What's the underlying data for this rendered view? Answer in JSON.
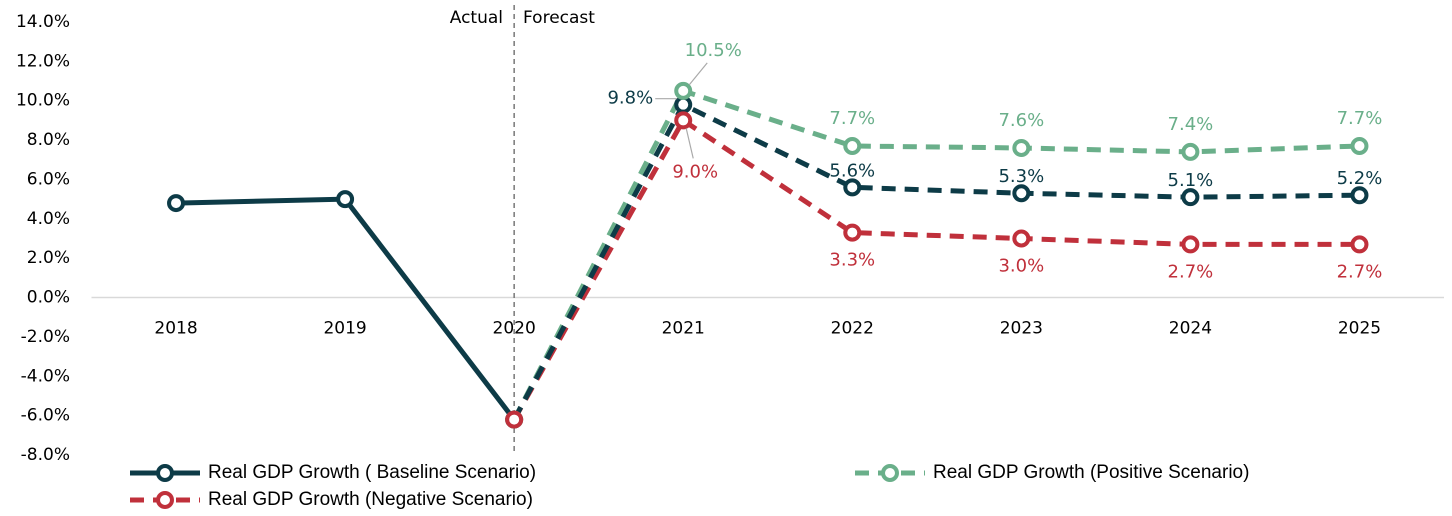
{
  "chart_data": {
    "type": "line",
    "categories": [
      "2018",
      "2019",
      "2020",
      "2021",
      "2022",
      "2023",
      "2024",
      "2025"
    ],
    "ylim": [
      -8,
      14
    ],
    "yticks": [
      {
        "value": 14,
        "label": "14.0%"
      },
      {
        "value": 12,
        "label": "12.0%"
      },
      {
        "value": 10,
        "label": "10.0%"
      },
      {
        "value": 8,
        "label": "8.0%"
      },
      {
        "value": 6,
        "label": "6.0%"
      },
      {
        "value": 4,
        "label": "4.0%"
      },
      {
        "value": 2,
        "label": "2.0%"
      },
      {
        "value": 0,
        "label": "0.0%"
      },
      {
        "value": -2,
        "label": "-2.0%"
      },
      {
        "value": -4,
        "label": "-4.0%"
      },
      {
        "value": -6,
        "label": "-6.0%"
      },
      {
        "value": -8,
        "label": "-8.0%"
      }
    ],
    "divider": {
      "index": 2,
      "left_label": "Actual",
      "right_label": "Forecast"
    },
    "legend": "bottom",
    "series": [
      {
        "name": "Real GDP Growth ( Baseline Scenario)",
        "color": "#0d3b47",
        "values": [
          4.8,
          5.0,
          -6.2,
          9.8,
          5.6,
          5.3,
          5.1,
          5.2
        ],
        "value_labels": [
          null,
          null,
          null,
          "9.8%",
          "5.6%",
          "5.3%",
          "5.1%",
          "5.2%"
        ]
      },
      {
        "name": "Real GDP Growth (Positive Scenario)",
        "color": "#6aaf8a",
        "values": [
          null,
          null,
          -6.2,
          10.5,
          7.7,
          7.6,
          7.4,
          7.7
        ],
        "value_labels": [
          null,
          null,
          null,
          "10.5%",
          "7.7%",
          "7.6%",
          "7.4%",
          "7.7%"
        ]
      },
      {
        "name": "Real GDP Growth (Negative Scenario)",
        "color": "#c0303b",
        "values": [
          null,
          null,
          -6.2,
          9.0,
          3.3,
          3.0,
          2.7,
          2.7
        ],
        "value_labels": [
          null,
          null,
          null,
          "9.0%",
          "3.3%",
          "3.0%",
          "2.7%",
          "2.7%"
        ]
      }
    ]
  }
}
